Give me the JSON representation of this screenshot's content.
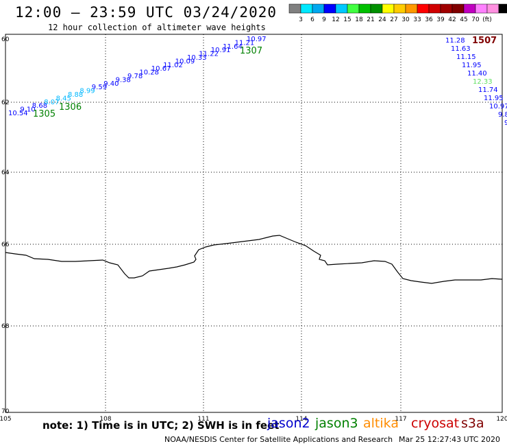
{
  "header": {
    "title": "12:00 – 23:59 UTC 03/24/2020",
    "subtitle": "12 hour collection of altimeter wave heights"
  },
  "colorbar": {
    "colors": [
      "#808080",
      "#00e8ff",
      "#00a8f0",
      "#0000ff",
      "#00c8ff",
      "#40ff40",
      "#00c000",
      "#009000",
      "#ffff00",
      "#ffcc00",
      "#ff9900",
      "#ff0000",
      "#d00000",
      "#a00000",
      "#800000",
      "#c000c0",
      "#ff80ff",
      "#ff90e0",
      "#000000"
    ],
    "labels": [
      "3",
      "6",
      "9",
      "12",
      "15",
      "18",
      "21",
      "24",
      "27",
      "30",
      "33",
      "36",
      "39",
      "42",
      "45",
      "70",
      "(ft)"
    ]
  },
  "map": {
    "lat_labels": [
      "60",
      "62",
      "64",
      "66",
      "68",
      "70"
    ],
    "lon_labels": [
      "105",
      "108",
      "111",
      "114",
      "117",
      "120"
    ],
    "coastline_color": "#000000",
    "grid": "dotted"
  },
  "tracks": [
    {
      "satellite": "jason3",
      "pass_label": "1306",
      "pass_label_color": "#008000",
      "points": [
        {
          "v": "10.54",
          "c": "#0000ff"
        },
        {
          "v": "9.10",
          "c": "#0000ff"
        },
        {
          "v": "8.68",
          "c": "#0000ff"
        },
        {
          "v": "8.07",
          "c": "#00b8ff"
        },
        {
          "v": "8.45",
          "c": "#00b8ff"
        },
        {
          "v": "8.88",
          "c": "#00b8ff"
        },
        {
          "v": "8.99",
          "c": "#00b8ff"
        },
        {
          "v": "9.59",
          "c": "#0000ff"
        },
        {
          "v": "9.40",
          "c": "#0000ff"
        },
        {
          "v": "9.38",
          "c": "#0000ff"
        },
        {
          "v": "9.78",
          "c": "#0000ff"
        },
        {
          "v": "10.28",
          "c": "#0000ff"
        },
        {
          "v": "10.67",
          "c": "#0000ff"
        },
        {
          "v": "11.02",
          "c": "#0000ff"
        },
        {
          "v": "10.09",
          "c": "#0000ff"
        },
        {
          "v": "10.33",
          "c": "#0000ff"
        },
        {
          "v": "11.22",
          "c": "#0000ff"
        },
        {
          "v": "10.91",
          "c": "#0000ff"
        },
        {
          "v": "11.64",
          "c": "#0000ff"
        },
        {
          "v": "11.21",
          "c": "#0000ff"
        },
        {
          "v": "10.97",
          "c": "#0000ff"
        }
      ],
      "extra_labels": [
        {
          "text": "1305",
          "color": "#008000"
        },
        {
          "text": "1307",
          "color": "#008000"
        }
      ]
    },
    {
      "satellite": "s3a",
      "pass_label": "1507",
      "pass_label_color": "#800000",
      "points": [
        {
          "v": "11.28",
          "c": "#0000ff"
        },
        {
          "v": "11.63",
          "c": "#0000ff"
        },
        {
          "v": "11.15",
          "c": "#0000ff"
        },
        {
          "v": "11.95",
          "c": "#0000ff"
        },
        {
          "v": "11.40",
          "c": "#0000ff"
        },
        {
          "v": "12.33",
          "c": "#60e060"
        },
        {
          "v": "11.74",
          "c": "#0000ff"
        },
        {
          "v": "11.95",
          "c": "#0000ff"
        },
        {
          "v": "10.97",
          "c": "#0000ff"
        },
        {
          "v": "9.8",
          "c": "#0000ff"
        },
        {
          "v": "9",
          "c": "#0000ff"
        }
      ]
    }
  ],
  "footer": {
    "note": "note: 1) Time is in UTC; 2) SWH is in feet",
    "satellites": [
      {
        "name": "jason2",
        "color": "#0000cc"
      },
      {
        "name": "jason3",
        "color": "#008000"
      },
      {
        "name": "altika",
        "color": "#ff8c00"
      },
      {
        "name": "cryosat",
        "color": "#cc0000"
      },
      {
        "name": "s3a",
        "color": "#800000"
      }
    ],
    "credit": "NOAA/NESDIS Center for Satellite Applications and Research",
    "timestamp": "Mar 25 12:27:43 UTC 2020"
  }
}
